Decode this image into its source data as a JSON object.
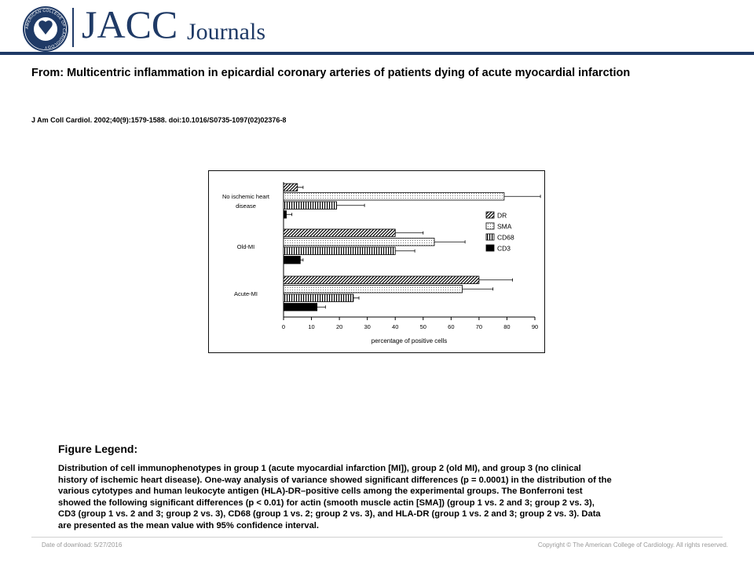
{
  "header": {
    "seal_label": "AMERICAN COLLEGE OF CARDIOLOGY",
    "brand_primary": "JACC",
    "brand_secondary": "Journals",
    "brand_color": "#1f3a66"
  },
  "article": {
    "title": "From: Multicentric inflammation in epicardial coronary arteries of patients dying of acute myocardial infarction",
    "citation": "J Am Coll Cardiol. 2002;40(9):1579-1588. doi:10.1016/S0735-1097(02)02376-8"
  },
  "chart_data": {
    "type": "bar",
    "orientation": "horizontal",
    "categories": [
      "No ischemic heart disease",
      "Old-MI",
      "Acute-MI"
    ],
    "category_lines": [
      [
        "No ischemic heart",
        "disease"
      ],
      [
        "Old-MI"
      ],
      [
        "Acute-MI"
      ]
    ],
    "series": [
      {
        "name": "DR",
        "pattern": "diagonal",
        "values": [
          5,
          40,
          70
        ],
        "err_high": [
          7,
          50,
          82
        ]
      },
      {
        "name": "SMA",
        "pattern": "dotted",
        "values": [
          79,
          54,
          64
        ],
        "err_high": [
          92,
          65,
          75
        ]
      },
      {
        "name": "CD68",
        "pattern": "vertical",
        "values": [
          19,
          40,
          25
        ],
        "err_high": [
          29,
          47,
          27
        ]
      },
      {
        "name": "CD3",
        "pattern": "solid",
        "values": [
          1,
          6,
          12
        ],
        "err_high": [
          3,
          7,
          15
        ]
      }
    ],
    "xlabel": "percentage of positive cells",
    "xlim": [
      0,
      90
    ],
    "xticks": [
      0,
      10,
      20,
      30,
      40,
      50,
      60,
      70,
      80,
      90
    ],
    "legend_position": "right",
    "grid": false
  },
  "legend": {
    "heading": "Figure Legend:",
    "lines": [
      "Distribution of cell immunophenotypes in group 1 (acute myocardial infarction [MI]), group 2 (old MI), and group 3 (no clinical",
      "history of ischemic heart disease). One-way analysis of variance showed significant differences (p = 0.0001) in the distribution of the",
      "various cytotypes and human leukocyte antigen (HLA)-DR–positive cells among the experimental groups. The Bonferroni test",
      "showed the following significant differences (p < 0.01) for actin (smooth muscle actin [SMA]) (group 1 vs. 2 and 3; group 2 vs. 3),",
      "CD3 (group 1 vs. 2 and 3; group 2 vs. 3), CD68 (group 1 vs. 2; group 2 vs. 3), and HLA-DR (group 1 vs. 2 and 3; group 2 vs. 3). Data",
      "are presented as the mean value with 95% confidence interval."
    ]
  },
  "footer": {
    "date": "Date of download: 5/27/2016",
    "copyright": "Copyright © The American College of Cardiology. All rights reserved."
  }
}
